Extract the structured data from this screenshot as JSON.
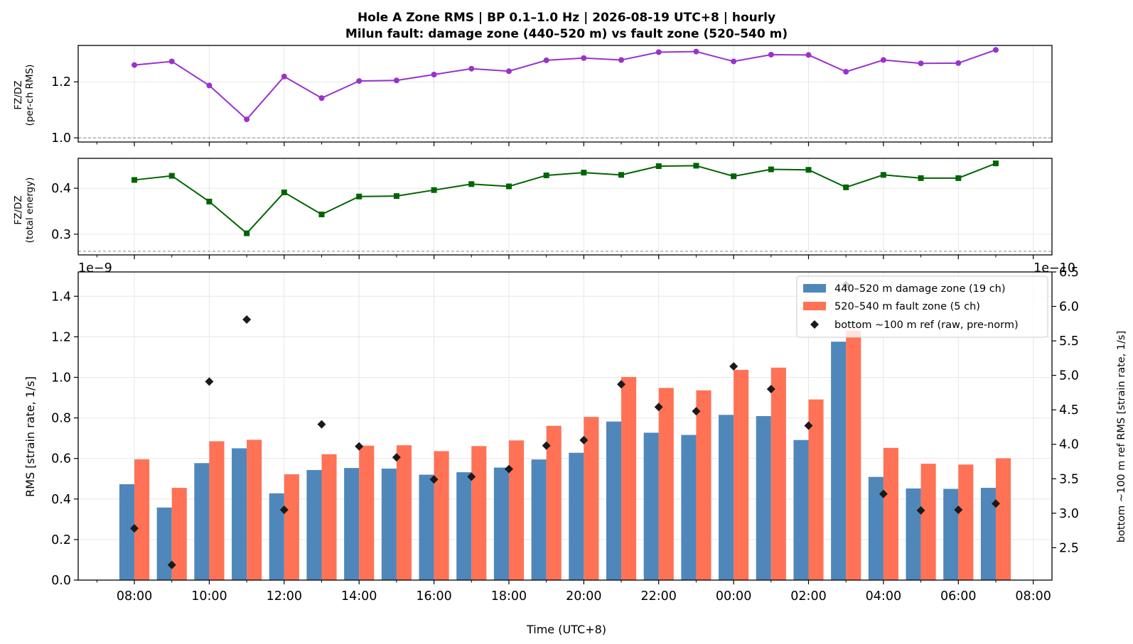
{
  "title": {
    "line1": "Hole A Zone RMS  |  BP 0.1–1.0 Hz  |  2026-08-19 UTC+8  |  hourly",
    "line2": "Milun fault: damage zone (440–520 m) vs fault zone (520–540 m)"
  },
  "chart_data": [
    {
      "type": "line",
      "ylabel_line1": "FZ/DZ",
      "ylabel_line2": "(per-ch RMS)",
      "x_hours": [
        0,
        1,
        2,
        3,
        4,
        5,
        6,
        7,
        8,
        9,
        10,
        11,
        12,
        13,
        14,
        15,
        16,
        17,
        18,
        19,
        20,
        21,
        22,
        23
      ],
      "values": [
        1.26,
        1.273,
        1.187,
        1.066,
        1.219,
        1.142,
        1.203,
        1.205,
        1.226,
        1.247,
        1.238,
        1.277,
        1.285,
        1.278,
        1.306,
        1.308,
        1.273,
        1.297,
        1.296,
        1.236,
        1.278,
        1.266,
        1.267,
        1.314
      ],
      "ylim": [
        0.985,
        1.33
      ],
      "yticks": [
        1.0,
        1.2
      ],
      "reference_line": 1.0,
      "color": "#9932cc"
    },
    {
      "type": "line",
      "ylabel_line1": "FZ/DZ",
      "ylabel_line2": "(total energy)",
      "x_hours": [
        0,
        1,
        2,
        3,
        4,
        5,
        6,
        7,
        8,
        9,
        10,
        11,
        12,
        13,
        14,
        15,
        16,
        17,
        18,
        19,
        20,
        21,
        22,
        23
      ],
      "values": [
        0.418,
        0.427,
        0.371,
        0.302,
        0.391,
        0.343,
        0.382,
        0.383,
        0.396,
        0.409,
        0.404,
        0.428,
        0.434,
        0.429,
        0.448,
        0.449,
        0.426,
        0.441,
        0.44,
        0.402,
        0.429,
        0.422,
        0.422,
        0.454
      ],
      "ylim": [
        0.255,
        0.465
      ],
      "yticks": [
        0.3,
        0.4
      ],
      "reference_line": 0.263,
      "color": "#006400"
    },
    {
      "type": "bar",
      "ylabel": "RMS  [strain rate, 1/s]",
      "y2label": "bottom ~100 m ref RMS  [strain rate, 1/s]",
      "xlabel": "Time (UTC+8)",
      "y_offset_text": "1e−9",
      "y2_offset_text": "1e−10",
      "categories": [
        "08:00",
        "09:00",
        "10:00",
        "11:00",
        "12:00",
        "13:00",
        "14:00",
        "15:00",
        "16:00",
        "17:00",
        "18:00",
        "19:00",
        "20:00",
        "21:00",
        "22:00",
        "23:00",
        "00:00",
        "01:00",
        "02:00",
        "03:00",
        "04:00",
        "05:00",
        "06:00",
        "07:00"
      ],
      "xtick_labels": [
        "08:00",
        "10:00",
        "12:00",
        "14:00",
        "16:00",
        "18:00",
        "20:00",
        "22:00",
        "00:00",
        "02:00",
        "04:00",
        "06:00",
        "08:00"
      ],
      "ylim": [
        0,
        1.52
      ],
      "yticks": [
        0.0,
        0.2,
        0.4,
        0.6,
        0.8,
        1.0,
        1.2,
        1.4
      ],
      "y2lim": [
        2.03,
        6.5
      ],
      "y2ticks": [
        2.5,
        3.0,
        3.5,
        4.0,
        4.5,
        5.0,
        5.5,
        6.0,
        6.5
      ],
      "series": [
        {
          "name": "440–520 m  damage zone (19 ch)",
          "color": "#4f87bb",
          "values": [
            0.473,
            0.358,
            0.577,
            0.65,
            0.428,
            0.543,
            0.553,
            0.55,
            0.52,
            0.532,
            0.555,
            0.595,
            0.628,
            0.782,
            0.727,
            0.716,
            0.815,
            0.809,
            0.691,
            1.176,
            0.509,
            0.452,
            0.45,
            0.455
          ]
        },
        {
          "name": "520–540 m  fault zone (5 ch)",
          "color": "#ff7256",
          "values": [
            0.596,
            0.455,
            0.685,
            0.692,
            0.522,
            0.621,
            0.663,
            0.665,
            0.636,
            0.661,
            0.689,
            0.761,
            0.805,
            1.002,
            0.948,
            0.936,
            1.037,
            1.048,
            0.891,
            1.23,
            0.652,
            0.574,
            0.57,
            0.601
          ]
        },
        {
          "name": "bottom ~100 m ref (raw, pre-norm)",
          "color": "#1a1a1a",
          "axis": "right",
          "values": [
            2.78,
            2.25,
            4.91,
            5.81,
            3.05,
            4.29,
            3.97,
            3.81,
            3.49,
            3.53,
            3.64,
            3.98,
            4.06,
            4.87,
            4.54,
            4.48,
            5.13,
            4.8,
            4.27,
            6.31,
            3.28,
            3.04,
            3.05,
            3.14
          ]
        }
      ],
      "legend_position": "top-right"
    }
  ]
}
